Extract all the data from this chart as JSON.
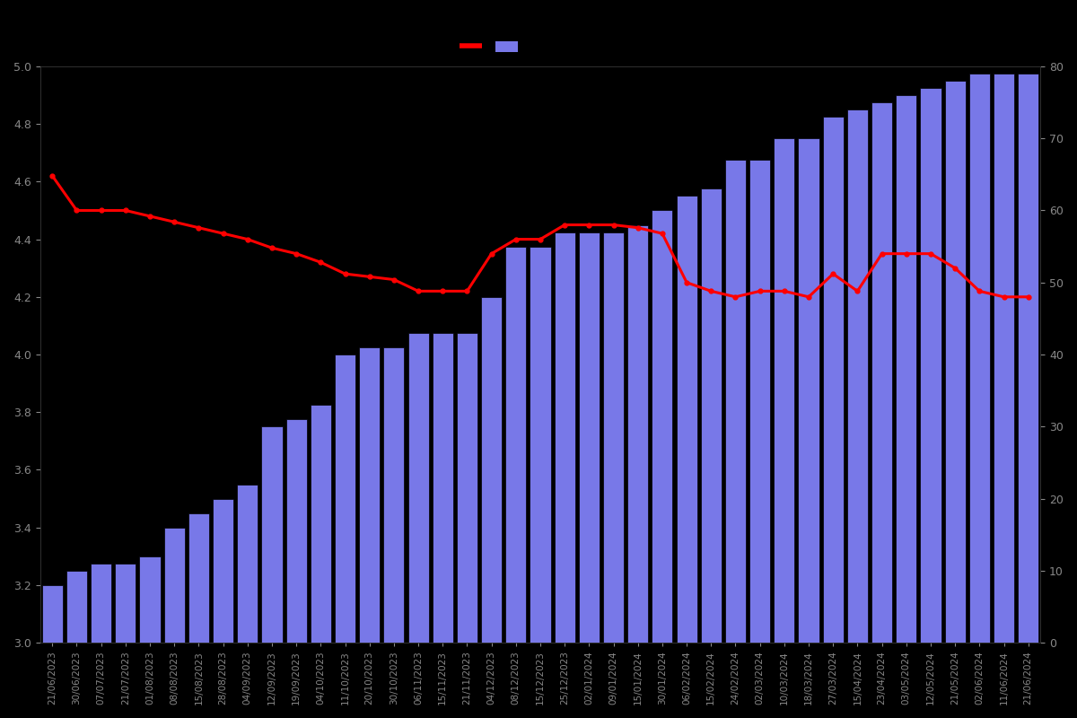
{
  "dates": [
    "21/06/2023",
    "30/06/2023",
    "07/07/2023",
    "21/07/2023",
    "01/08/2023",
    "08/08/2023",
    "15/08/2023",
    "28/08/2023",
    "04/09/2023",
    "12/09/2023",
    "19/09/2023",
    "04/10/2023",
    "11/10/2023",
    "20/10/2023",
    "30/10/2023",
    "06/11/2023",
    "15/11/2023",
    "21/11/2023",
    "04/12/2023",
    "08/12/2023",
    "15/12/2023",
    "25/12/2023",
    "02/01/2024",
    "09/01/2024",
    "15/01/2024",
    "30/01/2024",
    "06/02/2024",
    "15/02/2024",
    "24/02/2024",
    "02/03/2024",
    "10/03/2024",
    "18/03/2024",
    "27/03/2024",
    "15/04/2024",
    "23/04/2024",
    "03/05/2024",
    "12/05/2024",
    "21/05/2024",
    "02/06/2024",
    "11/06/2024",
    "21/06/2024"
  ],
  "bar_counts": [
    8,
    10,
    11,
    11,
    12,
    16,
    18,
    20,
    22,
    30,
    31,
    33,
    40,
    41,
    41,
    43,
    43,
    43,
    48,
    55,
    55,
    57,
    57,
    57,
    58,
    60,
    62,
    63,
    67,
    67,
    70,
    70,
    73,
    74,
    75,
    76,
    77,
    78,
    79,
    79,
    79
  ],
  "line_values": [
    4.62,
    4.5,
    4.5,
    4.5,
    4.48,
    4.46,
    4.44,
    4.42,
    4.4,
    4.37,
    4.35,
    4.32,
    4.28,
    4.27,
    4.26,
    4.22,
    4.22,
    4.22,
    4.35,
    4.4,
    4.4,
    4.45,
    4.45,
    4.45,
    4.44,
    4.42,
    4.25,
    4.22,
    4.2,
    4.22,
    4.22,
    4.2,
    4.28,
    4.22,
    4.35,
    4.35,
    4.35,
    4.3,
    4.22,
    4.2,
    4.2
  ],
  "bar_color": "#7878e8",
  "line_color": "#ff0000",
  "background_color": "#000000",
  "text_color": "#888888",
  "ylim_left": [
    3.0,
    5.0
  ],
  "ylim_right": [
    0,
    80
  ],
  "yticks_left": [
    3.0,
    3.2,
    3.4,
    3.6,
    3.8,
    4.0,
    4.2,
    4.4,
    4.6,
    4.8,
    5.0
  ],
  "yticks_right": [
    0,
    10,
    20,
    30,
    40,
    50,
    60,
    70,
    80
  ],
  "bar_width": 0.85
}
